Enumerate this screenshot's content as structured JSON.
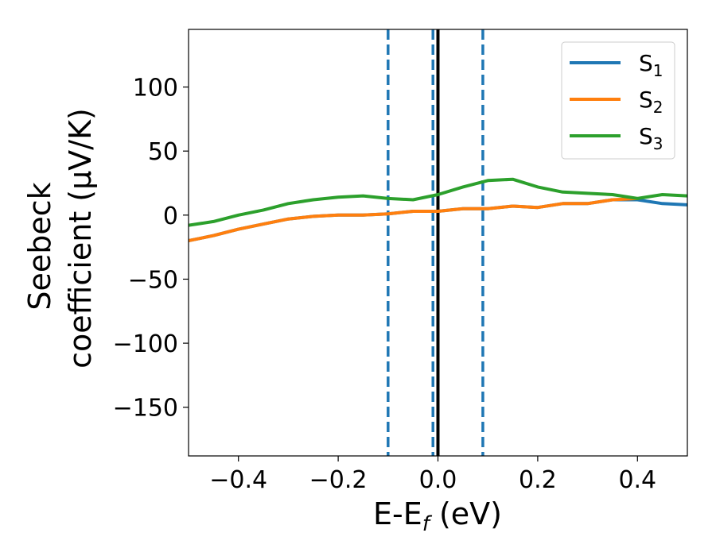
{
  "chart_data": {
    "type": "line",
    "xlabel": {
      "main": "E-E",
      "sub": "f",
      "tail": " (eV)"
    },
    "ylabel": {
      "line1": "Seebeck",
      "line2": "coefficient  (μV/K)"
    },
    "xlim": [
      -0.5,
      0.5
    ],
    "ylim": [
      -188,
      145
    ],
    "xticks": [
      -0.4,
      -0.2,
      0.0,
      0.2,
      0.4
    ],
    "xtick_labels": [
      "−0.4",
      "−0.2",
      "0.0",
      "0.2",
      "0.4"
    ],
    "yticks": [
      100,
      50,
      0,
      -50,
      -100,
      -150
    ],
    "ytick_labels": [
      "100",
      "50",
      "0",
      "−50",
      "−100",
      "−150"
    ],
    "grid": false,
    "legend_position": "top-right",
    "series": [
      {
        "name": "S",
        "sub": "1",
        "color": "#1f77b4",
        "x": [
          -0.5,
          -0.45,
          -0.4,
          -0.35,
          -0.3,
          -0.25,
          -0.2,
          -0.15,
          -0.1,
          -0.05,
          0.0,
          0.05,
          0.1,
          0.15,
          0.2,
          0.25,
          0.3,
          0.35,
          0.4,
          0.45,
          0.5
        ],
        "y": [
          -20,
          -16,
          -11,
          -7,
          -3,
          -1,
          0,
          0,
          1,
          3,
          3,
          5,
          5,
          7,
          6,
          9,
          9,
          12,
          12,
          9,
          8
        ]
      },
      {
        "name": "S",
        "sub": "2",
        "color": "#ff7f0e",
        "x": [
          -0.5,
          -0.45,
          -0.4,
          -0.35,
          -0.3,
          -0.25,
          -0.2,
          -0.15,
          -0.1,
          -0.05,
          0.0,
          0.05,
          0.1,
          0.15,
          0.2,
          0.25,
          0.3,
          0.35,
          0.4
        ],
        "y": [
          -20,
          -16,
          -11,
          -7,
          -3,
          -1,
          0,
          0,
          1,
          3,
          3,
          5,
          5,
          7,
          6,
          9,
          9,
          12,
          13
        ]
      },
      {
        "name": "S",
        "sub": "3",
        "color": "#2ca02c",
        "x": [
          -0.5,
          -0.45,
          -0.4,
          -0.35,
          -0.3,
          -0.25,
          -0.2,
          -0.15,
          -0.1,
          -0.05,
          0.0,
          0.05,
          0.1,
          0.15,
          0.2,
          0.25,
          0.3,
          0.35,
          0.4,
          0.45,
          0.5
        ],
        "y": [
          -8,
          -5,
          0,
          4,
          9,
          12,
          14,
          15,
          13,
          12,
          16,
          22,
          27,
          28,
          22,
          18,
          17,
          16,
          13,
          16,
          15
        ]
      }
    ],
    "vlines": [
      {
        "x": -0.1,
        "style": "dashed",
        "color": "#1f77b4"
      },
      {
        "x": -0.01,
        "style": "dashed",
        "color": "#1f77b4"
      },
      {
        "x": 0.0,
        "style": "solid",
        "color": "#000000"
      },
      {
        "x": 0.09,
        "style": "dashed",
        "color": "#1f77b4"
      }
    ]
  }
}
